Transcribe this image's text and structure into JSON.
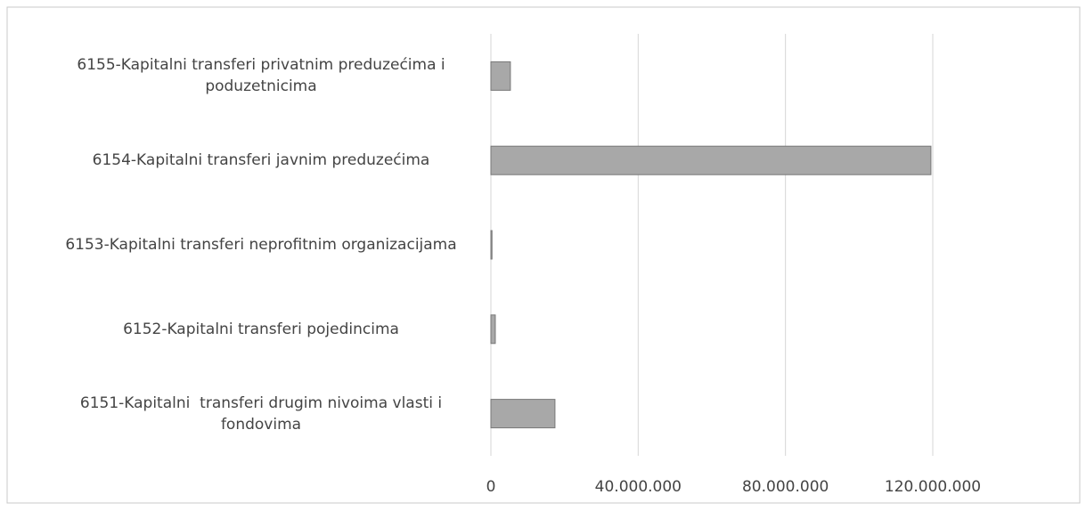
{
  "chart_data": {
    "type": "barh",
    "categories": [
      "6155-Kapitalni transferi privatnim preduzećima i poduzetnicima",
      "6154-Kapitalni transferi javnim preduzećima",
      "6153-Kapitalni transferi neprofitnim organizacijama",
      "6152-Kapitalni transferi pojedincima",
      "6151-Kapitalni  transferi drugim nivoima vlasti i fondovima"
    ],
    "values": [
      5300000,
      119500000,
      300000,
      1200000,
      17400000
    ],
    "color": "#a8a8a8",
    "xlim": [
      0,
      120000000
    ],
    "xticks": [
      0,
      {
        "value": 40000000,
        "label": "40.000.000"
      },
      {
        "value": 80000000,
        "label": "80.000.000"
      },
      {
        "value": 120000000,
        "label": "120.000.000"
      }
    ],
    "grid": true
  }
}
